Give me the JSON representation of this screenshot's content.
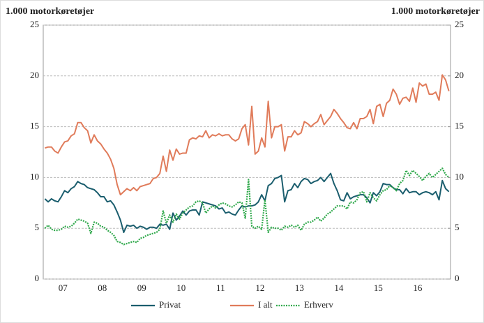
{
  "chart_data": {
    "type": "line",
    "y_label": "1.000 motorkøretøjer",
    "y2_label": "1.000 motorkøretøjer",
    "categories": [
      null,
      null,
      null,
      null,
      null,
      null,
      "07",
      null,
      null,
      null,
      null,
      null,
      null,
      null,
      null,
      null,
      null,
      null,
      "08",
      null,
      null,
      null,
      null,
      null,
      null,
      null,
      null,
      null,
      null,
      null,
      "09",
      null,
      null,
      null,
      null,
      null,
      null,
      null,
      null,
      null,
      null,
      null,
      "10",
      null,
      null,
      null,
      null,
      null,
      null,
      null,
      null,
      null,
      null,
      null,
      "11",
      null,
      null,
      null,
      null,
      null,
      null,
      null,
      null,
      null,
      null,
      null,
      "12",
      null,
      null,
      null,
      null,
      null,
      null,
      null,
      null,
      null,
      null,
      null,
      "13",
      null,
      null,
      null,
      null,
      null,
      null,
      null,
      null,
      null,
      null,
      null,
      "14",
      null,
      null,
      null,
      null,
      null,
      null,
      null,
      null,
      null,
      null,
      null,
      "15",
      null,
      null,
      null,
      null,
      null,
      null,
      null,
      null,
      null,
      null,
      null,
      "16",
      null,
      null,
      null,
      null,
      null,
      null,
      null,
      null,
      null
    ],
    "series": [
      {
        "name": "Privat",
        "color": "#1b5e6e",
        "line_style": "solid",
        "values": [
          7.9,
          7.6,
          7.9,
          7.7,
          7.6,
          8.1,
          8.7,
          8.5,
          8.9,
          9.1,
          9.6,
          9.4,
          9.3,
          9.0,
          8.9,
          8.8,
          8.5,
          8.1,
          8.1,
          7.6,
          7.7,
          7.3,
          6.6,
          5.8,
          4.6,
          5.3,
          5.2,
          5.3,
          5.0,
          5.2,
          5.1,
          4.9,
          5.1,
          5.1,
          5.0,
          5.4,
          5.3,
          5.4,
          4.9,
          6.5,
          5.8,
          6.2,
          6.7,
          6.3,
          6.7,
          6.8,
          6.8,
          6.3,
          7.6,
          7.5,
          7.4,
          7.3,
          7.2,
          6.9,
          7.0,
          6.5,
          6.6,
          6.4,
          6.3,
          6.8,
          7.2,
          7.1,
          7.2,
          7.2,
          7.3,
          7.6,
          8.3,
          7.7,
          9.2,
          9.4,
          9.9,
          10.0,
          10.2,
          7.6,
          8.7,
          8.8,
          9.4,
          9.0,
          9.6,
          9.9,
          9.8,
          9.4,
          9.6,
          9.7,
          10.0,
          9.6,
          10.0,
          10.4,
          9.4,
          8.7,
          7.8,
          7.7,
          8.5,
          7.9,
          8.1,
          8.2,
          8.3,
          8.3,
          8.0,
          7.5,
          8.5,
          8.2,
          8.6,
          9.4,
          9.3,
          9.3,
          9.0,
          8.8,
          8.8,
          8.4,
          8.9,
          8.5,
          8.6,
          8.6,
          8.3,
          8.5,
          8.6,
          8.5,
          8.3,
          8.6,
          7.8,
          9.7,
          8.9,
          8.6
        ]
      },
      {
        "name": "I alt",
        "color": "#e07b5a",
        "line_style": "solid",
        "values": [
          12.9,
          13.0,
          13.0,
          12.6,
          12.4,
          13.0,
          13.5,
          13.6,
          14.1,
          14.3,
          15.4,
          15.4,
          14.9,
          14.6,
          13.4,
          14.2,
          13.6,
          13.3,
          12.8,
          12.4,
          11.8,
          10.9,
          9.3,
          8.3,
          8.6,
          8.9,
          8.7,
          9.0,
          8.7,
          9.1,
          9.2,
          9.3,
          9.4,
          9.9,
          10.0,
          10.4,
          12.1,
          10.6,
          12.7,
          11.7,
          12.8,
          12.3,
          12.4,
          12.4,
          13.7,
          13.9,
          13.8,
          14.1,
          14.0,
          14.6,
          13.9,
          14.2,
          14.1,
          14.3,
          14.1,
          14.2,
          14.2,
          13.8,
          13.6,
          13.8,
          14.8,
          15.2,
          13.2,
          17.0,
          12.3,
          12.6,
          13.9,
          13.0,
          17.5,
          13.9,
          15.0,
          15.0,
          15.2,
          12.6,
          14.0,
          14.0,
          14.6,
          14.2,
          14.4,
          15.5,
          15.3,
          15.0,
          15.3,
          15.5,
          16.2,
          15.2,
          15.6,
          16.0,
          16.7,
          16.3,
          15.8,
          15.4,
          14.9,
          14.8,
          15.4,
          14.8,
          15.8,
          15.8,
          16.0,
          16.7,
          15.3,
          17.0,
          17.2,
          16.0,
          17.3,
          17.6,
          18.7,
          18.2,
          17.2,
          17.8,
          17.9,
          17.5,
          18.8,
          17.4,
          19.3,
          19.0,
          19.2,
          18.2,
          18.2,
          18.4,
          17.6,
          20.1,
          19.6,
          18.5
        ]
      },
      {
        "name": "Erhverv",
        "color": "#2ea84a",
        "line_style": "dotted",
        "values": [
          5.0,
          5.3,
          4.9,
          4.8,
          4.8,
          4.9,
          5.2,
          5.1,
          5.2,
          5.5,
          5.9,
          5.8,
          5.7,
          5.5,
          4.5,
          5.6,
          5.5,
          5.2,
          5.1,
          4.8,
          4.6,
          4.3,
          3.7,
          3.6,
          3.4,
          3.5,
          3.6,
          3.7,
          3.6,
          4.0,
          4.1,
          4.3,
          4.4,
          4.5,
          4.6,
          4.9,
          6.7,
          5.5,
          6.3,
          5.6,
          6.4,
          5.9,
          6.5,
          6.8,
          7.1,
          7.2,
          7.6,
          7.7,
          7.5,
          6.5,
          6.9,
          7.2,
          7.0,
          7.3,
          7.5,
          7.4,
          7.2,
          7.1,
          7.3,
          7.6,
          7.5,
          6.0,
          9.8,
          5.2,
          5.0,
          5.2,
          4.9,
          7.8,
          4.6,
          5.1,
          5.0,
          5.0,
          4.8,
          5.2,
          5.1,
          5.3,
          5.1,
          5.3,
          4.8,
          5.4,
          5.6,
          5.6,
          5.8,
          6.1,
          5.7,
          6.0,
          6.4,
          6.6,
          6.9,
          7.2,
          7.2,
          7.2,
          6.9,
          7.6,
          7.5,
          7.8,
          8.5,
          8.6,
          7.6,
          8.5,
          8.0,
          7.7,
          8.3,
          8.7,
          8.8,
          9.2,
          9.0,
          8.7,
          9.4,
          9.7,
          10.7,
          10.2,
          10.7,
          10.4,
          10.1,
          9.7,
          10.1,
          10.4,
          10.0,
          10.3,
          10.6,
          10.9,
          10.3,
          10.0
        ]
      }
    ],
    "ylim": [
      0,
      25
    ],
    "yticks": [
      0,
      5,
      10,
      15,
      20,
      25
    ],
    "y2lim": [
      0,
      25
    ],
    "y2ticks": [
      0,
      5,
      10,
      15,
      20,
      25
    ],
    "grid": true,
    "legend": "bottom"
  }
}
